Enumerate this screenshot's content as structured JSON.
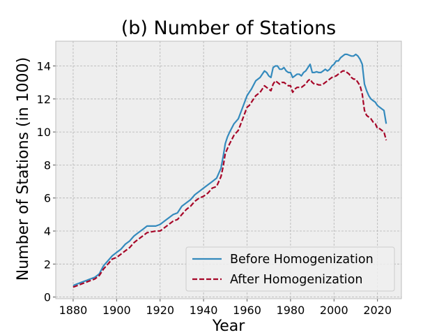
{
  "chart_data": {
    "type": "line",
    "title": "(b) Number of Stations",
    "xlabel": "Year",
    "ylabel": "Number of Stations (in 1000)",
    "xlim": [
      1872,
      2031
    ],
    "ylim": [
      -0.1,
      15.5
    ],
    "xticks": [
      1880,
      1900,
      1920,
      1940,
      1960,
      1980,
      2000,
      2020
    ],
    "yticks": [
      0,
      2,
      4,
      6,
      8,
      10,
      12,
      14
    ],
    "grid": true,
    "legend_position": "lower-right",
    "series": [
      {
        "name": "Before Homogenization",
        "color": "#348ABD",
        "style": "solid",
        "x": [
          1880,
          1882,
          1884,
          1886,
          1888,
          1890,
          1892,
          1894,
          1896,
          1898,
          1900,
          1902,
          1904,
          1906,
          1908,
          1910,
          1912,
          1914,
          1916,
          1918,
          1920,
          1922,
          1924,
          1926,
          1928,
          1930,
          1932,
          1934,
          1936,
          1938,
          1940,
          1942,
          1944,
          1946,
          1948,
          1949,
          1950,
          1951,
          1952,
          1954,
          1956,
          1958,
          1960,
          1961,
          1962,
          1964,
          1966,
          1968,
          1969,
          1970,
          1971,
          1972,
          1973,
          1974,
          1975,
          1976,
          1977,
          1978,
          1979,
          1980,
          1981,
          1982,
          1983,
          1984,
          1985,
          1986,
          1987,
          1988,
          1989,
          1990,
          1991,
          1992,
          1993,
          1994,
          1995,
          1996,
          1997,
          1998,
          1999,
          2000,
          2001,
          2002,
          2003,
          2004,
          2005,
          2006,
          2007,
          2008,
          2009,
          2010,
          2011,
          2012,
          2013,
          2014,
          2015,
          2016,
          2017,
          2018,
          2019,
          2020,
          2021,
          2022,
          2023,
          2024
        ],
        "y": [
          0.7,
          0.8,
          0.9,
          1.0,
          1.1,
          1.2,
          1.4,
          1.9,
          2.2,
          2.5,
          2.7,
          2.9,
          3.2,
          3.4,
          3.7,
          3.9,
          4.1,
          4.3,
          4.3,
          4.3,
          4.4,
          4.6,
          4.8,
          5.0,
          5.1,
          5.5,
          5.7,
          5.9,
          6.2,
          6.4,
          6.6,
          6.8,
          7.0,
          7.2,
          7.8,
          8.5,
          9.3,
          9.7,
          10.0,
          10.5,
          10.8,
          11.5,
          12.2,
          12.4,
          12.6,
          13.1,
          13.3,
          13.7,
          13.6,
          13.4,
          13.3,
          13.9,
          14.0,
          14.0,
          13.8,
          13.8,
          13.9,
          13.7,
          13.6,
          13.6,
          13.3,
          13.4,
          13.5,
          13.5,
          13.4,
          13.6,
          13.7,
          13.9,
          14.1,
          13.6,
          13.6,
          13.65,
          13.6,
          13.6,
          13.7,
          13.8,
          13.7,
          13.8,
          14.0,
          14.1,
          14.3,
          14.3,
          14.5,
          14.6,
          14.7,
          14.7,
          14.65,
          14.6,
          14.6,
          14.7,
          14.6,
          14.4,
          14.1,
          12.9,
          12.5,
          12.2,
          12.0,
          11.9,
          11.8,
          11.6,
          11.5,
          11.4,
          11.3,
          10.5
        ]
      },
      {
        "name": "After Homogenization",
        "color": "#A60628",
        "style": "dashed",
        "x": [
          1880,
          1882,
          1884,
          1886,
          1888,
          1890,
          1892,
          1894,
          1896,
          1898,
          1900,
          1902,
          1904,
          1906,
          1908,
          1910,
          1912,
          1914,
          1916,
          1918,
          1920,
          1922,
          1924,
          1926,
          1928,
          1930,
          1932,
          1934,
          1936,
          1938,
          1940,
          1942,
          1944,
          1946,
          1948,
          1949,
          1950,
          1951,
          1952,
          1954,
          1956,
          1958,
          1960,
          1961,
          1962,
          1964,
          1966,
          1968,
          1969,
          1970,
          1971,
          1972,
          1973,
          1974,
          1975,
          1976,
          1977,
          1978,
          1979,
          1980,
          1981,
          1982,
          1983,
          1984,
          1985,
          1986,
          1987,
          1988,
          1989,
          1990,
          1991,
          1992,
          1993,
          1994,
          1995,
          1996,
          1997,
          1998,
          1999,
          2000,
          2001,
          2002,
          2003,
          2004,
          2005,
          2006,
          2007,
          2008,
          2009,
          2010,
          2011,
          2012,
          2013,
          2014,
          2015,
          2016,
          2017,
          2018,
          2019,
          2020,
          2021,
          2022,
          2023,
          2024
        ],
        "y": [
          0.6,
          0.7,
          0.8,
          0.9,
          1.0,
          1.1,
          1.3,
          1.7,
          2.0,
          2.3,
          2.4,
          2.6,
          2.8,
          3.0,
          3.3,
          3.5,
          3.7,
          3.9,
          3.95,
          4.0,
          4.0,
          4.2,
          4.4,
          4.6,
          4.7,
          5.0,
          5.3,
          5.5,
          5.8,
          6.0,
          6.1,
          6.3,
          6.6,
          6.7,
          7.3,
          7.9,
          8.7,
          9.0,
          9.3,
          9.8,
          10.1,
          10.8,
          11.5,
          11.6,
          11.8,
          12.2,
          12.4,
          12.8,
          12.7,
          12.6,
          12.5,
          12.9,
          13.1,
          13.0,
          12.9,
          13.0,
          13.0,
          12.9,
          12.8,
          12.8,
          12.4,
          12.6,
          12.7,
          12.7,
          12.7,
          12.8,
          12.9,
          13.1,
          13.2,
          13.0,
          12.9,
          12.9,
          12.85,
          12.85,
          12.9,
          13.0,
          13.1,
          13.2,
          13.3,
          13.35,
          13.4,
          13.5,
          13.6,
          13.7,
          13.7,
          13.6,
          13.5,
          13.3,
          13.2,
          13.2,
          13.0,
          12.8,
          12.3,
          11.3,
          11.0,
          10.9,
          10.8,
          10.6,
          10.5,
          10.2,
          10.2,
          10.1,
          10.0,
          9.5
        ]
      }
    ]
  }
}
